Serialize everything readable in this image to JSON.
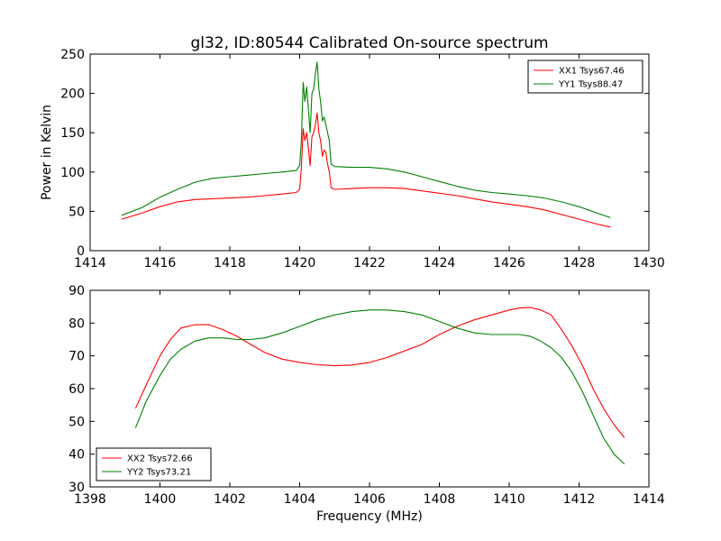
{
  "chart_data": [
    {
      "type": "line",
      "title": "gl32, ID:80544 Calibrated On-source spectrum",
      "xlabel": "",
      "ylabel": "Power in Kelvin",
      "xlim": [
        1414,
        1430
      ],
      "ylim": [
        0,
        250
      ],
      "xticks": [
        "1414",
        "1416",
        "1418",
        "1420",
        "1422",
        "1424",
        "1426",
        "1428",
        "1430"
      ],
      "yticks": [
        "0",
        "50",
        "100",
        "150",
        "200",
        "250"
      ],
      "grid": false,
      "legend_position": "top-right",
      "series": [
        {
          "name": "XX1 Tsys67.46",
          "color": "#ff0000",
          "x": [
            1414.9,
            1415.5,
            1416,
            1416.5,
            1417,
            1417.5,
            1418,
            1418.5,
            1419,
            1419.5,
            1419.9,
            1420.0,
            1420.05,
            1420.1,
            1420.15,
            1420.2,
            1420.25,
            1420.3,
            1420.35,
            1420.4,
            1420.45,
            1420.5,
            1420.55,
            1420.6,
            1420.65,
            1420.7,
            1420.75,
            1420.8,
            1420.85,
            1420.9,
            1421.0,
            1421.5,
            1422,
            1422.5,
            1423,
            1423.5,
            1424,
            1424.5,
            1425,
            1425.5,
            1426,
            1426.5,
            1427,
            1427.5,
            1428,
            1428.5,
            1428.9
          ],
          "values": [
            40,
            48,
            56,
            62,
            65,
            66,
            67,
            68,
            70,
            72,
            74,
            78,
            105,
            155,
            140,
            150,
            130,
            108,
            145,
            150,
            160,
            175,
            150,
            140,
            120,
            128,
            125,
            110,
            100,
            80,
            78,
            79,
            80,
            80,
            79,
            76,
            73,
            70,
            66,
            62,
            59,
            56,
            52,
            46,
            40,
            34,
            30
          ]
        },
        {
          "name": "YY1 Tsys88.47",
          "color": "#008000",
          "x": [
            1414.9,
            1415.5,
            1416,
            1416.5,
            1417,
            1417.5,
            1418,
            1418.5,
            1419,
            1419.5,
            1419.9,
            1420.0,
            1420.05,
            1420.1,
            1420.15,
            1420.2,
            1420.25,
            1420.3,
            1420.35,
            1420.4,
            1420.45,
            1420.5,
            1420.55,
            1420.6,
            1420.65,
            1420.7,
            1420.75,
            1420.8,
            1420.85,
            1420.9,
            1421.0,
            1421.5,
            1422,
            1422.5,
            1423,
            1423.5,
            1424,
            1424.5,
            1425,
            1425.5,
            1426,
            1426.5,
            1427,
            1427.5,
            1428,
            1428.5,
            1428.9
          ],
          "values": [
            45,
            55,
            68,
            78,
            87,
            92,
            94,
            96,
            98,
            100,
            102,
            108,
            140,
            214,
            190,
            208,
            180,
            150,
            200,
            205,
            225,
            240,
            205,
            190,
            165,
            170,
            160,
            150,
            140,
            110,
            107,
            106,
            106,
            104,
            100,
            94,
            88,
            82,
            77,
            74,
            72,
            70,
            67,
            62,
            56,
            48,
            42
          ]
        }
      ]
    },
    {
      "type": "line",
      "title": "",
      "xlabel": "Frequency (MHz)",
      "ylabel": "",
      "xlim": [
        1398,
        1414
      ],
      "ylim": [
        30,
        90
      ],
      "xticks": [
        "1398",
        "1400",
        "1402",
        "1404",
        "1406",
        "1408",
        "1410",
        "1412",
        "1414"
      ],
      "yticks": [
        "30",
        "40",
        "50",
        "60",
        "70",
        "80",
        "90"
      ],
      "grid": false,
      "legend_position": "bottom-left",
      "series": [
        {
          "name": "XX2 Tsys72.66",
          "color": "#ff0000",
          "x": [
            1399.3,
            1399.6,
            1400,
            1400.3,
            1400.6,
            1401,
            1401.4,
            1401.8,
            1402.2,
            1402.6,
            1403,
            1403.5,
            1404,
            1404.5,
            1405,
            1405.5,
            1406,
            1406.5,
            1407,
            1407.5,
            1408,
            1408.5,
            1409,
            1409.5,
            1410,
            1410.3,
            1410.6,
            1410.9,
            1411.2,
            1411.5,
            1411.8,
            1412.1,
            1412.4,
            1412.7,
            1413,
            1413.3
          ],
          "values": [
            54,
            61,
            70,
            75,
            78.5,
            79.5,
            79.5,
            78,
            76,
            73.5,
            71,
            69,
            68,
            67.3,
            67,
            67.2,
            68,
            69.5,
            71.5,
            73.5,
            76.5,
            79,
            81,
            82.5,
            84,
            84.6,
            84.8,
            84,
            82.5,
            78,
            73,
            67,
            60,
            54,
            49,
            45
          ]
        },
        {
          "name": "YY2 Tsys73.21",
          "color": "#008000",
          "x": [
            1399.3,
            1399.6,
            1400,
            1400.3,
            1400.6,
            1401,
            1401.4,
            1401.8,
            1402.2,
            1402.6,
            1403,
            1403.5,
            1404,
            1404.5,
            1405,
            1405.5,
            1406,
            1406.5,
            1407,
            1407.5,
            1408,
            1408.5,
            1409,
            1409.5,
            1410,
            1410.3,
            1410.6,
            1410.9,
            1411.2,
            1411.5,
            1411.8,
            1412.1,
            1412.4,
            1412.7,
            1413,
            1413.3
          ],
          "values": [
            48,
            56,
            64,
            69,
            72,
            74.5,
            75.5,
            75.5,
            75,
            75,
            75.5,
            77,
            79,
            81,
            82.5,
            83.5,
            84,
            84,
            83.5,
            82.5,
            80.5,
            78.5,
            77,
            76.5,
            76.5,
            76.5,
            76,
            74.5,
            72.5,
            69.5,
            65,
            59,
            52,
            45,
            40,
            37
          ]
        }
      ]
    }
  ]
}
